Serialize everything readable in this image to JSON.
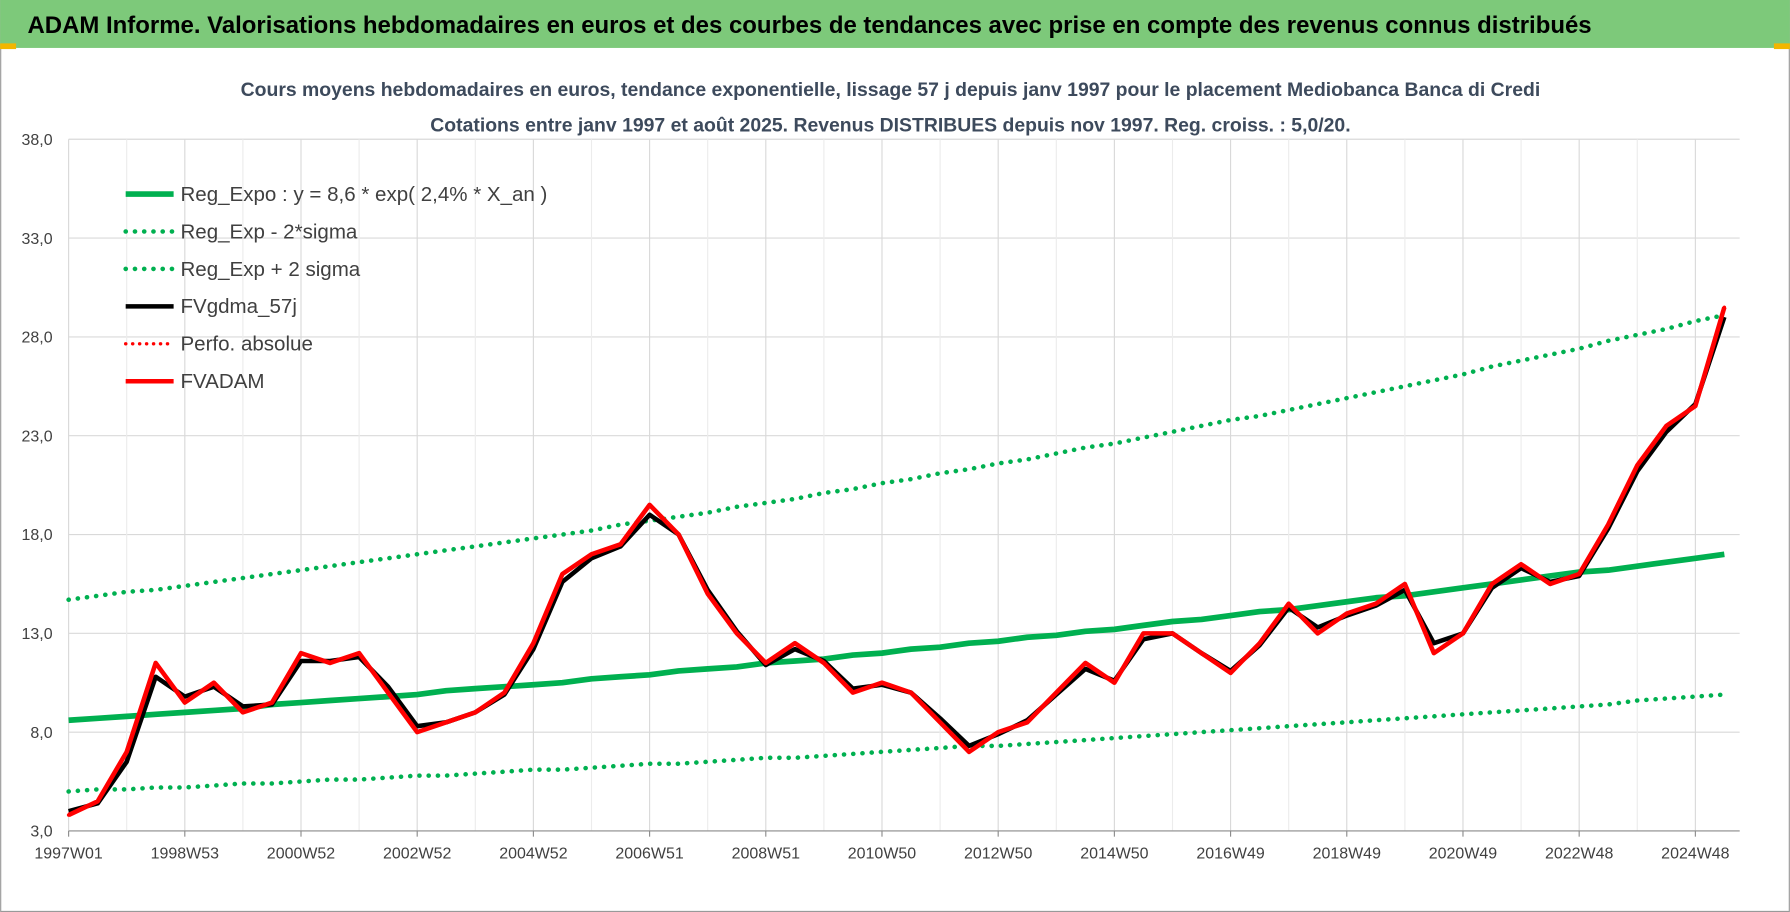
{
  "header": {
    "title": "ADAM Informe. Valorisations hebdomadaires en euros et des courbes de tendances avec prise en compte des revenus connus distribués"
  },
  "chart_data": {
    "type": "line",
    "title": "Cours moyens hebdomadaires en euros, tendance exponentielle, lissage 57 j depuis janv 1997 pour le placement Mediobanca Banca di Credi",
    "subtitle": "Cotations entre janv 1997 et août 2025. Revenus DISTRIBUES depuis nov 1997. Reg. croiss. : 5,0/20.",
    "categories": [
      "1997W01",
      null,
      null,
      null,
      "1998W53",
      null,
      null,
      null,
      "2000W52",
      null,
      null,
      null,
      "2002W52",
      null,
      null,
      null,
      "2004W52",
      null,
      null,
      null,
      "2006W51",
      null,
      null,
      null,
      "2008W51",
      null,
      null,
      null,
      "2010W50",
      null,
      null,
      null,
      "2012W50",
      null,
      null,
      null,
      "2014W50",
      null,
      null,
      null,
      "2016W49",
      null,
      null,
      null,
      "2018W49",
      null,
      null,
      null,
      "2020W49",
      null,
      null,
      null,
      "2022W48",
      null,
      null,
      null,
      "2024W48",
      null
    ],
    "ylim": [
      3,
      38
    ],
    "yticks": [
      {
        "value": 3,
        "label": "3,0"
      },
      {
        "value": 8,
        "label": "8,0"
      },
      {
        "value": 13,
        "label": "13,0"
      },
      {
        "value": 18,
        "label": "18,0"
      },
      {
        "value": 23,
        "label": "23,0"
      },
      {
        "value": 28,
        "label": "28,0"
      },
      {
        "value": 33,
        "label": "33,0"
      },
      {
        "value": 38,
        "label": "38,0"
      }
    ],
    "grid": true,
    "legend": "upper left",
    "series": [
      {
        "name": "Reg_Expo : y = 8,6 * exp( 2,4% *  X_an )",
        "color": "#00b050",
        "style": "solid",
        "width": 5,
        "values": [
          8.6,
          8.7,
          8.8,
          8.9,
          9.0,
          9.1,
          9.2,
          9.4,
          9.5,
          9.6,
          9.7,
          9.8,
          9.9,
          10.1,
          10.2,
          10.3,
          10.4,
          10.5,
          10.7,
          10.8,
          10.9,
          11.1,
          11.2,
          11.3,
          11.5,
          11.6,
          11.7,
          11.9,
          12.0,
          12.2,
          12.3,
          12.5,
          12.6,
          12.8,
          12.9,
          13.1,
          13.2,
          13.4,
          13.6,
          13.7,
          13.9,
          14.1,
          14.2,
          14.4,
          14.6,
          14.8,
          14.9,
          15.1,
          15.3,
          15.5,
          15.7,
          15.9,
          16.1,
          16.2,
          16.4,
          16.6,
          16.8,
          17.0
        ]
      },
      {
        "name": "Reg_Exp - 2*sigma",
        "color": "#00b050",
        "style": "dotted",
        "width": 4,
        "values": [
          5.0,
          5.1,
          5.1,
          5.2,
          5.2,
          5.3,
          5.4,
          5.4,
          5.5,
          5.6,
          5.6,
          5.7,
          5.8,
          5.8,
          5.9,
          6.0,
          6.1,
          6.1,
          6.2,
          6.3,
          6.4,
          6.4,
          6.5,
          6.6,
          6.7,
          6.7,
          6.8,
          6.9,
          7.0,
          7.1,
          7.2,
          7.3,
          7.3,
          7.4,
          7.5,
          7.6,
          7.7,
          7.8,
          7.9,
          8.0,
          8.1,
          8.2,
          8.3,
          8.4,
          8.5,
          8.6,
          8.7,
          8.8,
          8.9,
          9.0,
          9.1,
          9.2,
          9.3,
          9.4,
          9.6,
          9.7,
          9.8,
          9.9
        ]
      },
      {
        "name": "Reg_Exp + 2 sigma",
        "color": "#00b050",
        "style": "dotted",
        "width": 4,
        "values": [
          14.7,
          14.9,
          15.1,
          15.2,
          15.4,
          15.6,
          15.8,
          16.0,
          16.2,
          16.4,
          16.6,
          16.8,
          17.0,
          17.2,
          17.4,
          17.6,
          17.8,
          18.0,
          18.2,
          18.5,
          18.7,
          18.9,
          19.1,
          19.4,
          19.6,
          19.8,
          20.1,
          20.3,
          20.6,
          20.8,
          21.1,
          21.3,
          21.6,
          21.8,
          22.1,
          22.4,
          22.6,
          22.9,
          23.2,
          23.5,
          23.8,
          24.0,
          24.3,
          24.6,
          24.9,
          25.2,
          25.5,
          25.8,
          26.1,
          26.5,
          26.8,
          27.1,
          27.4,
          27.8,
          28.1,
          28.4,
          28.8,
          29.1
        ]
      },
      {
        "name": "FVgdma_57j",
        "color": "#000000",
        "style": "solid",
        "width": 4,
        "values": [
          4.0,
          4.4,
          6.5,
          10.8,
          9.8,
          10.3,
          9.3,
          9.4,
          11.6,
          11.6,
          11.8,
          10.3,
          8.3,
          8.5,
          9.0,
          9.9,
          12.2,
          15.6,
          16.8,
          17.4,
          19.0,
          18.0,
          15.2,
          13.1,
          11.4,
          12.2,
          11.6,
          10.2,
          10.4,
          10.0,
          8.7,
          7.3,
          7.9,
          8.6,
          9.9,
          11.2,
          10.6,
          12.7,
          13.0,
          12.0,
          11.1,
          12.4,
          14.3,
          13.3,
          13.9,
          14.4,
          15.2,
          12.5,
          13.0,
          15.3,
          16.3,
          15.6,
          15.9,
          18.3,
          21.2,
          23.2,
          24.6,
          29.0
        ]
      },
      {
        "name": "Perfo. absolue",
        "color": "#ff0000",
        "style": "dotted",
        "width": 3,
        "values": [
          3.8,
          4.5,
          7.0,
          11.5,
          9.5,
          10.5,
          9.0,
          9.5,
          12.0,
          11.5,
          12.0,
          10.0,
          8.0,
          8.5,
          9.0,
          10.0,
          12.5,
          16.0,
          17.0,
          17.5,
          19.5,
          18.0,
          15.0,
          13.0,
          11.5,
          12.5,
          11.5,
          10.0,
          10.5,
          10.0,
          8.5,
          7.0,
          8.0,
          8.5,
          10.0,
          11.5,
          10.5,
          13.0,
          13.0,
          12.0,
          11.0,
          12.5,
          14.5,
          13.0,
          14.0,
          14.5,
          15.5,
          12.0,
          13.0,
          15.5,
          16.5,
          15.5,
          16.0,
          18.5,
          21.5,
          23.5,
          24.5,
          29.5
        ]
      },
      {
        "name": "FVADAM",
        "color": "#ff0000",
        "style": "solid",
        "width": 4,
        "values": [
          3.8,
          4.5,
          7.0,
          11.5,
          9.5,
          10.5,
          9.0,
          9.5,
          12.0,
          11.5,
          12.0,
          10.0,
          8.0,
          8.5,
          9.0,
          10.0,
          12.5,
          16.0,
          17.0,
          17.5,
          19.5,
          18.0,
          15.0,
          13.0,
          11.5,
          12.5,
          11.5,
          10.0,
          10.5,
          10.0,
          8.5,
          7.0,
          8.0,
          8.5,
          10.0,
          11.5,
          10.5,
          13.0,
          13.0,
          12.0,
          11.0,
          12.5,
          14.5,
          13.0,
          14.0,
          14.5,
          15.5,
          12.0,
          13.0,
          15.5,
          16.5,
          15.5,
          16.0,
          18.5,
          21.5,
          23.5,
          24.5,
          29.5
        ]
      }
    ]
  }
}
